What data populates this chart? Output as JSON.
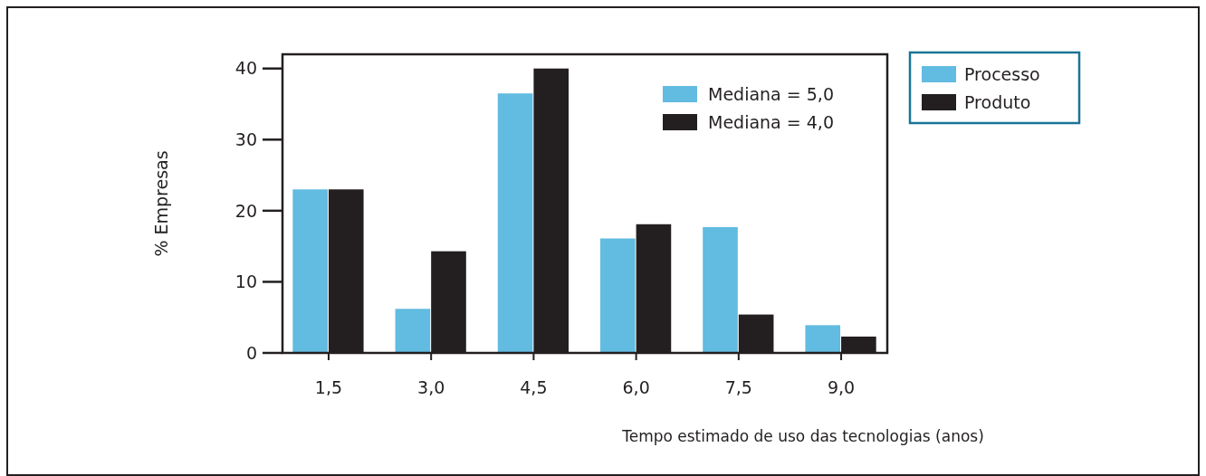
{
  "chart_data": {
    "type": "bar",
    "xlabel": "Tempo estimado de uso das tecnologias (anos)",
    "ylabel": "% Empresas",
    "categories": [
      "1,5",
      "3,0",
      "4,5",
      "6,0",
      "7,5",
      "9,0"
    ],
    "series": [
      {
        "name": "Processo",
        "color": "#62bbe0",
        "values": [
          23,
          6.2,
          36.5,
          16.1,
          17.7,
          3.9
        ]
      },
      {
        "name": "Produto",
        "color": "#231f20",
        "values": [
          23,
          14.3,
          40,
          18.1,
          5.4,
          2.3
        ]
      }
    ],
    "ylim": [
      0,
      42
    ],
    "yticks": [
      0,
      10,
      20,
      30,
      40
    ],
    "grid": false,
    "legend": "right",
    "annotations": [
      "Mediana = 5,0",
      "Mediana = 4,0"
    ]
  }
}
